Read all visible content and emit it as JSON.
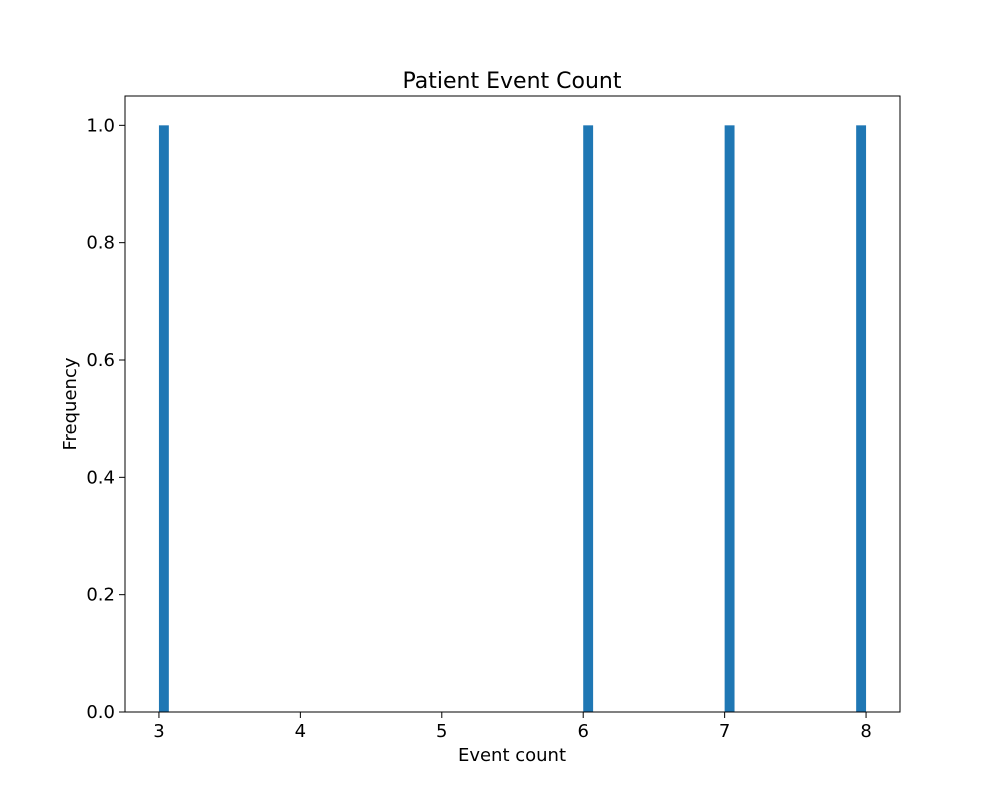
{
  "chart_data": {
    "type": "bar",
    "title": "Patient Event Count",
    "xlabel": "Event count",
    "ylabel": "Frequency",
    "xlim": [
      2.76,
      8.24
    ],
    "ylim": [
      0,
      1.05
    ],
    "xticks": [
      3,
      4,
      5,
      6,
      7,
      8
    ],
    "yticks": [
      0.0,
      0.2,
      0.4,
      0.6,
      0.8,
      1.0
    ],
    "ytick_labels": [
      "0.0",
      "0.2",
      "0.4",
      "0.6",
      "0.8",
      "1.0"
    ],
    "bin_width": 0.07,
    "bars": [
      {
        "x": 3.0,
        "value": 1.0
      },
      {
        "x": 6.0,
        "value": 1.0
      },
      {
        "x": 7.0,
        "value": 1.0
      },
      {
        "x": 7.93,
        "value": 1.0
      }
    ],
    "grid": false,
    "bar_color": "#1f77b4"
  }
}
